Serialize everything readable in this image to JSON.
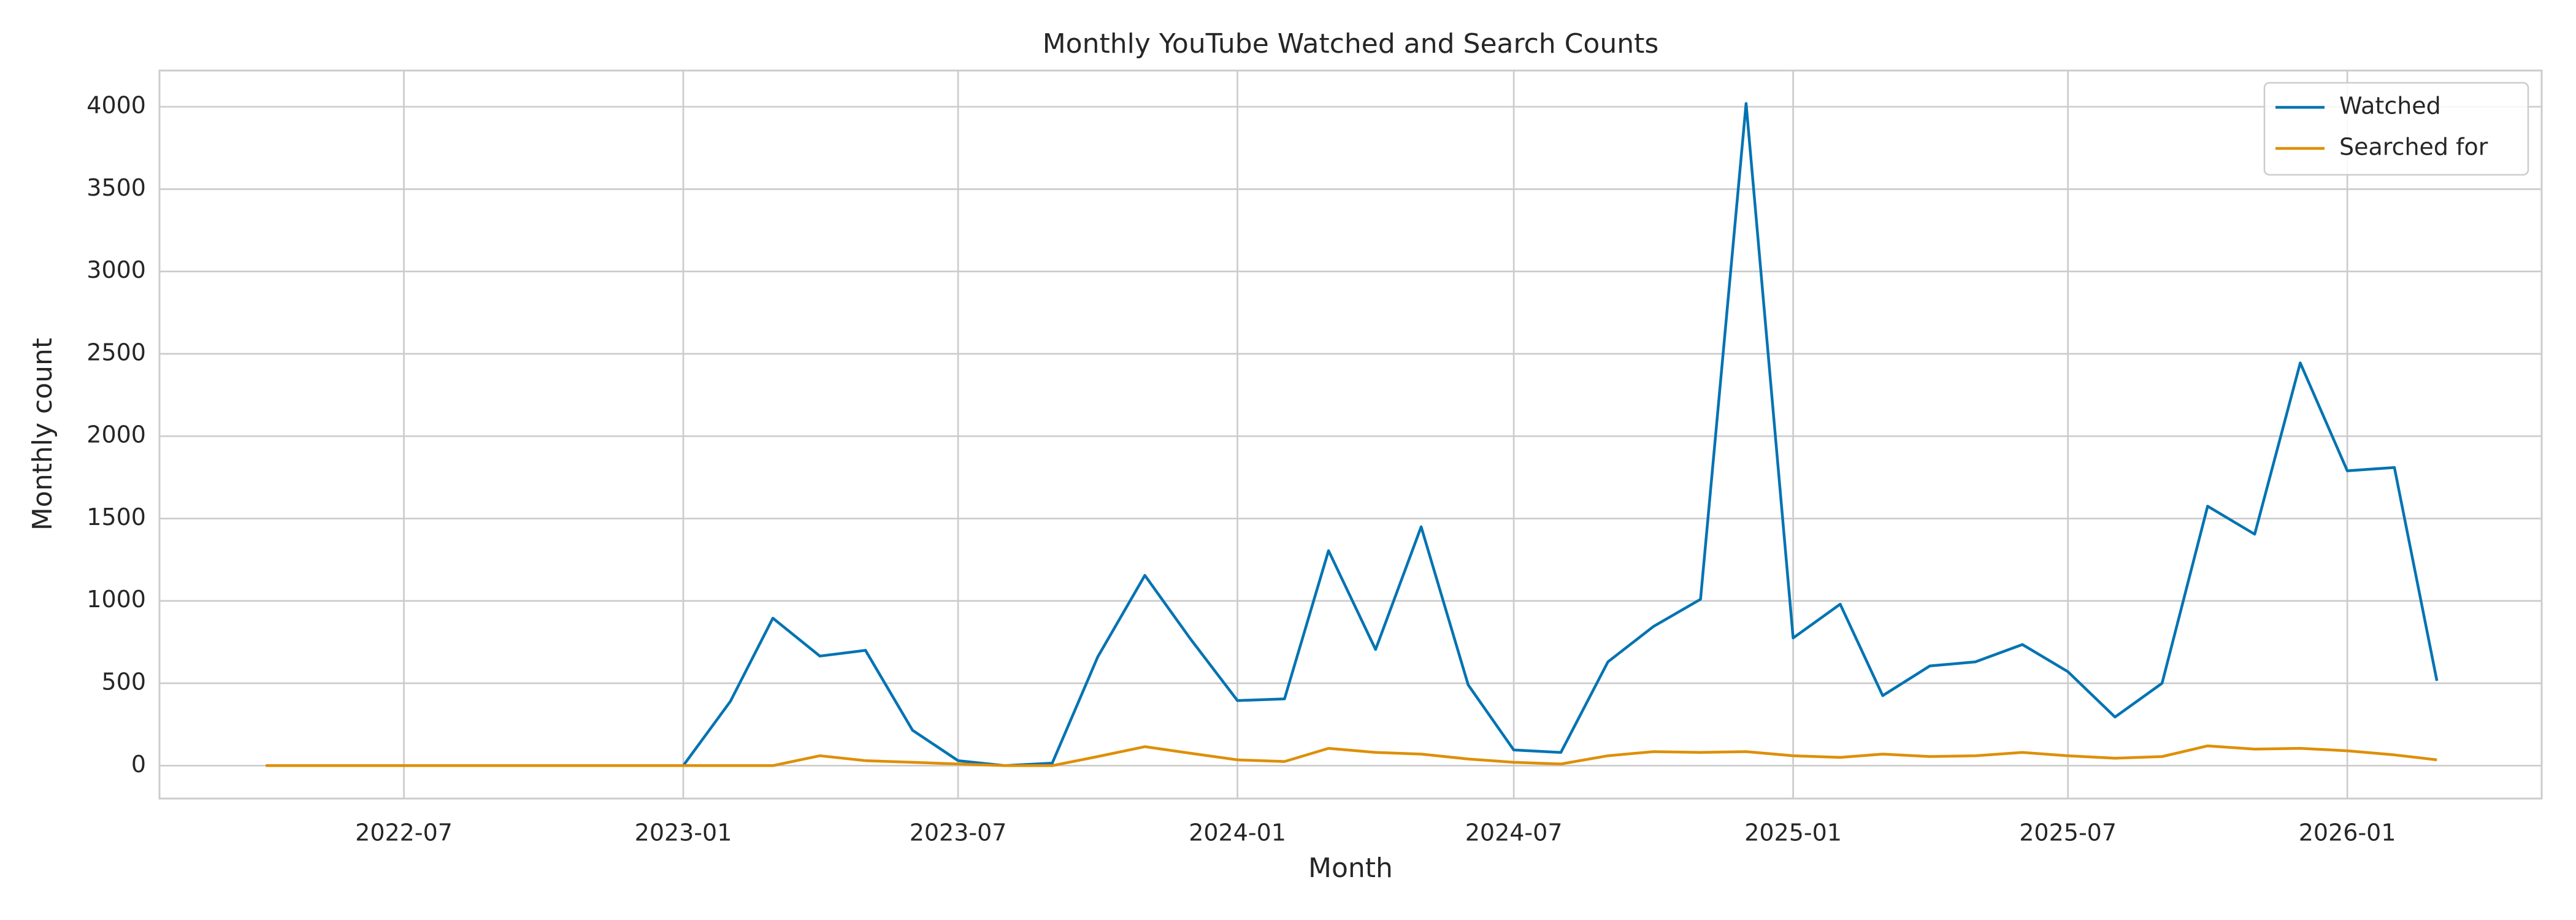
{
  "chart_data": {
    "type": "line",
    "title": "Monthly YouTube Watched and Search Counts",
    "x_label": "Month",
    "y_label": "Monthly count",
    "x": [
      "2022-04",
      "2022-05",
      "2022-06",
      "2022-07",
      "2022-08",
      "2022-09",
      "2022-10",
      "2022-11",
      "2022-12",
      "2023-01",
      "2023-02",
      "2023-03",
      "2023-04",
      "2023-05",
      "2023-06",
      "2023-07",
      "2023-08",
      "2023-09",
      "2023-10",
      "2023-11",
      "2023-12",
      "2024-01",
      "2024-02",
      "2024-03",
      "2024-04",
      "2024-05",
      "2024-06",
      "2024-07",
      "2024-08",
      "2024-09",
      "2024-10",
      "2024-11",
      "2024-12",
      "2025-01",
      "2025-02",
      "2025-03",
      "2025-04",
      "2025-05",
      "2025-06",
      "2025-07",
      "2025-08",
      "2025-09",
      "2025-10",
      "2025-11",
      "2025-12",
      "2026-01",
      "2026-02",
      "2026-03"
    ],
    "series": [
      {
        "name": "Watched",
        "color": "#0173b2",
        "values": [
          0,
          0,
          0,
          0,
          0,
          0,
          0,
          0,
          0,
          0,
          390,
          895,
          665,
          700,
          215,
          30,
          0,
          15,
          660,
          1155,
          770,
          395,
          405,
          1305,
          705,
          1450,
          490,
          95,
          80,
          630,
          845,
          1010,
          4020,
          775,
          980,
          425,
          605,
          630,
          735,
          570,
          295,
          500,
          1575,
          1405,
          2445,
          1790,
          1810,
          515
        ]
      },
      {
        "name": "Searched for",
        "color": "#de8f05",
        "values": [
          0,
          0,
          0,
          0,
          0,
          0,
          0,
          0,
          0,
          0,
          0,
          0,
          60,
          30,
          20,
          10,
          0,
          0,
          55,
          115,
          75,
          35,
          25,
          105,
          80,
          70,
          40,
          20,
          10,
          60,
          85,
          80,
          85,
          60,
          50,
          70,
          55,
          60,
          80,
          60,
          45,
          55,
          120,
          100,
          105,
          90,
          65,
          35
        ]
      }
    ],
    "xlim": [
      "2022-01-21",
      "2026-05-09"
    ],
    "xticks": [
      "2022-07",
      "2023-01",
      "2023-07",
      "2024-01",
      "2024-07",
      "2025-01",
      "2025-07",
      "2026-01"
    ],
    "ylim": [
      -200,
      4220
    ],
    "yticks": [
      0,
      500,
      1000,
      1500,
      2000,
      2500,
      3000,
      3500,
      4000
    ],
    "grid": true,
    "legend": "upper right"
  }
}
